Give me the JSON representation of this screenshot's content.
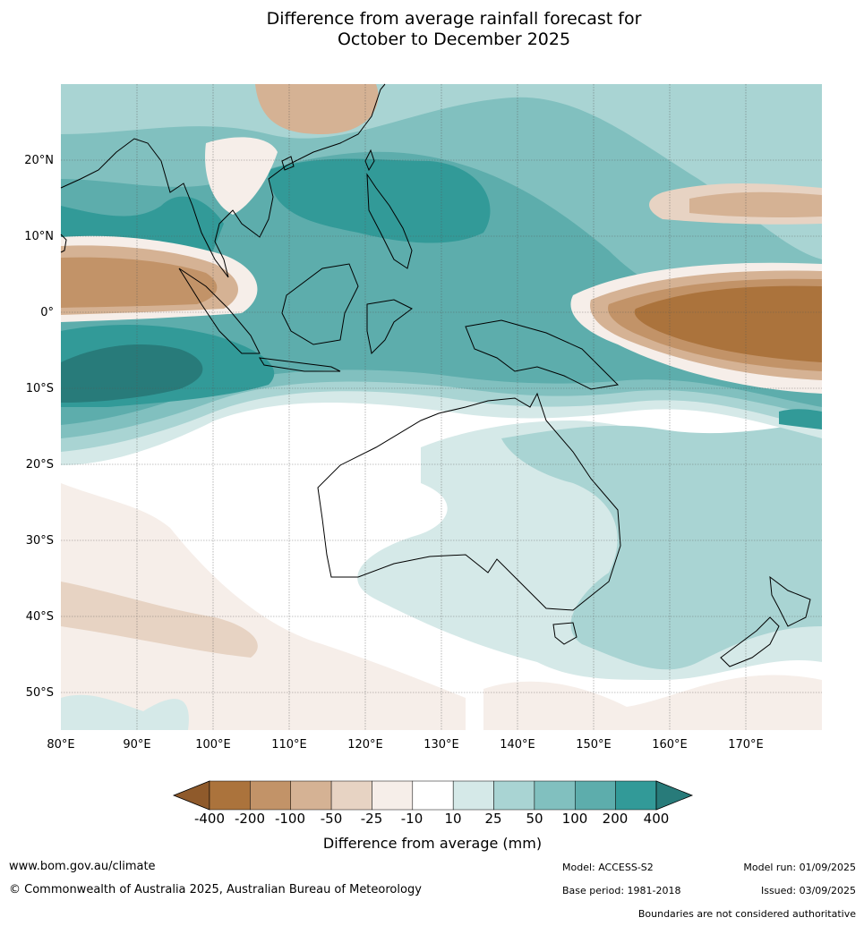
{
  "title": {
    "line1": "Difference from average rainfall forecast for",
    "line2": "October to December 2025"
  },
  "map": {
    "lat_labels": [
      "20°N",
      "10°N",
      "0°",
      "10°S",
      "20°S",
      "30°S",
      "40°S",
      "50°S"
    ],
    "lon_labels": [
      "80°E",
      "90°E",
      "100°E",
      "110°E",
      "120°E",
      "130°E",
      "140°E",
      "150°E",
      "160°E",
      "170°E"
    ],
    "lon_range": [
      80,
      180
    ],
    "lat_range": [
      -55,
      30
    ],
    "regions": [
      {
        "name": "Australia",
        "category": "10 to 25 / 25 to 50"
      },
      {
        "name": "Maritime Continent",
        "category": "50 to 200"
      },
      {
        "name": "Equatorial Indian Ocean 0-5°N",
        "category": "-100 to -200"
      },
      {
        "name": "Equatorial Pacific east of 160°E",
        "category": "-200 to -400"
      },
      {
        "name": "Southern Indian Ocean",
        "category": "-10 to -50"
      }
    ]
  },
  "colorbar": {
    "labels": [
      "-400",
      "-200",
      "-100",
      "-50",
      "-25",
      "-10",
      "10",
      "25",
      "50",
      "100",
      "200",
      "400"
    ],
    "colors": [
      "#8f5a2b",
      "#ab733c",
      "#c29368",
      "#d5b294",
      "#e7d3c3",
      "#f6eee9",
      "#ffffff",
      "#d5e9e8",
      "#a9d4d3",
      "#81c0bf",
      "#5dadac",
      "#329a98",
      "#287b7a"
    ],
    "title": "Difference from average (mm)"
  },
  "footer": {
    "website": "www.bom.gov.au/climate",
    "copyright": "© Commonwealth of Australia 2025, Australian Bureau of Meteorology",
    "model": "Model: ACCESS-S2",
    "base_period": "Base period: 1981-2018",
    "model_run": "Model run: 01/09/2025",
    "issued": "Issued: 03/09/2025",
    "disclaimer": "Boundaries are not considered authoritative"
  }
}
